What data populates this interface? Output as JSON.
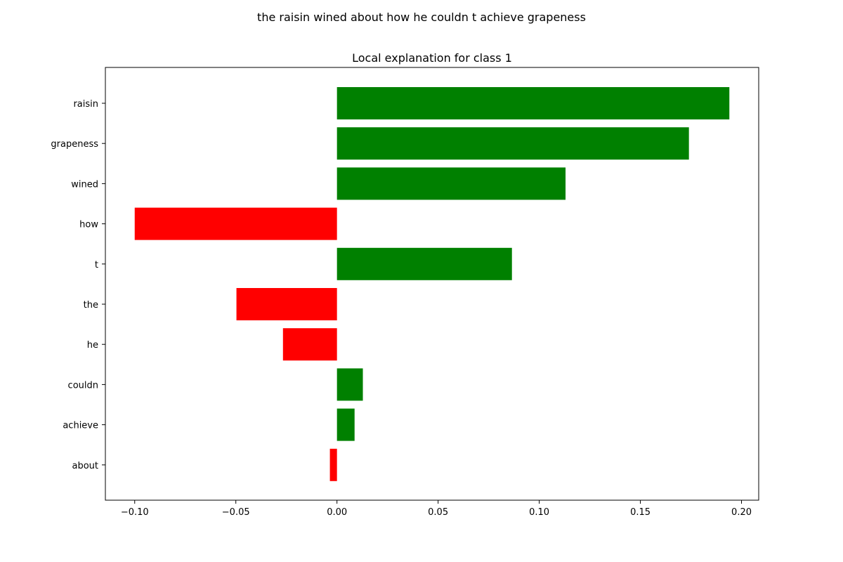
{
  "chart_data": {
    "type": "bar",
    "orientation": "horizontal",
    "suptitle": "the raisin wined about how he couldn t achieve grapeness",
    "title": "Local explanation for class 1",
    "xlabel": "",
    "ylabel": "",
    "xlim": [
      -0.1145,
      0.2085
    ],
    "xticks": [
      -0.1,
      -0.05,
      0.0,
      0.05,
      0.1,
      0.15,
      0.2
    ],
    "xtick_labels": [
      "−0.10",
      "−0.05",
      "0.00",
      "0.05",
      "0.10",
      "0.15",
      "0.20"
    ],
    "categories": [
      "raisin",
      "grapeness",
      "wined",
      "how",
      "t",
      "the",
      "he",
      "couldn",
      "achieve",
      "about"
    ],
    "values": [
      0.194,
      0.174,
      0.113,
      -0.1,
      0.0865,
      -0.0497,
      -0.0267,
      0.0128,
      0.0087,
      -0.0035
    ],
    "colors": {
      "positive": "#008000",
      "negative": "#ff0000"
    },
    "grid": false,
    "legend": "none"
  }
}
